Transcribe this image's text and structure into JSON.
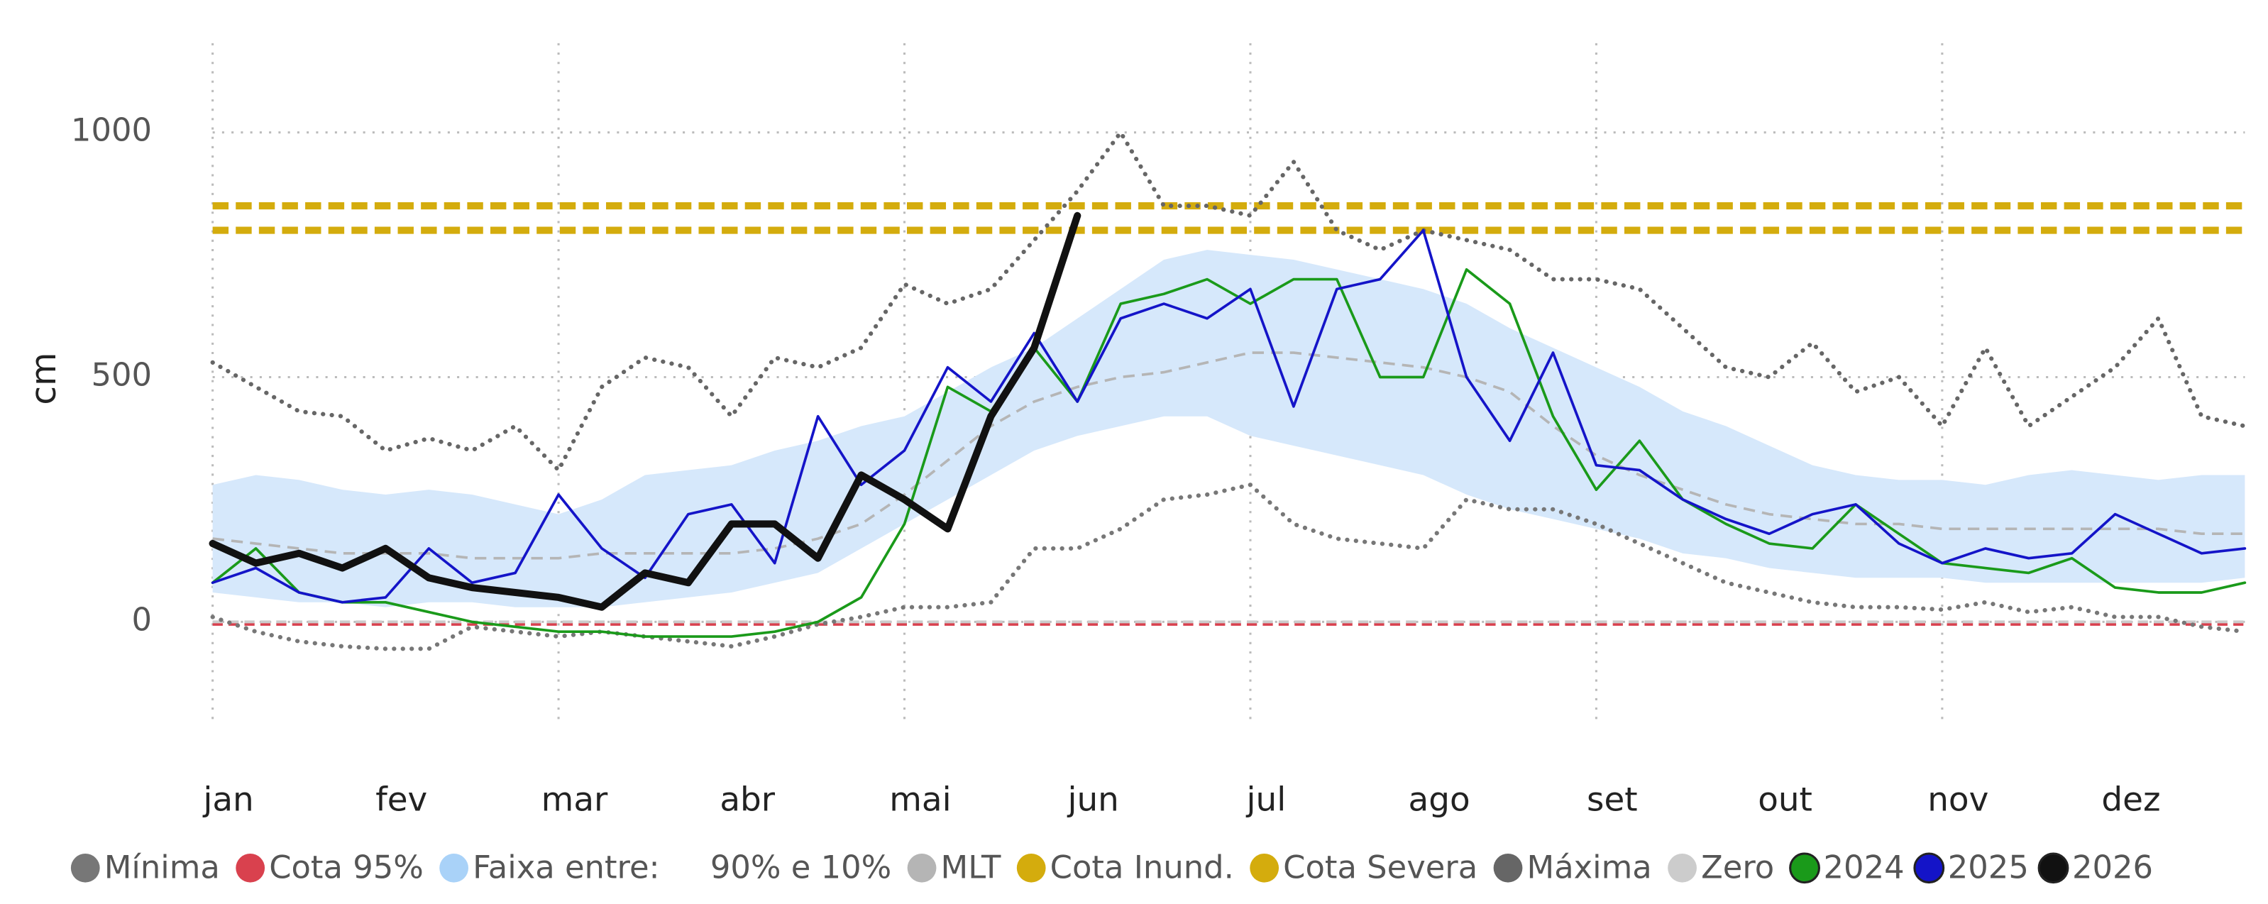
{
  "chart_data": {
    "type": "line",
    "y_label": "cm",
    "ylim": [
      -200,
      1200
    ],
    "yticks": [
      0,
      500,
      1000
    ],
    "grid": true,
    "categories": [
      "jan",
      null,
      null,
      null,
      "fev",
      null,
      null,
      null,
      "mar",
      null,
      null,
      null,
      "abr",
      null,
      null,
      null,
      "mai",
      null,
      null,
      null,
      "jun",
      null,
      null,
      null,
      "jul",
      null,
      null,
      null,
      "ago",
      null,
      null,
      null,
      "set",
      null,
      null,
      null,
      "out",
      null,
      null,
      null,
      "nov",
      null,
      null,
      null,
      "dez",
      null,
      null,
      null
    ],
    "series": [
      {
        "name": "Mínima",
        "color": "#777777",
        "style": "dotted",
        "values": [
          10,
          -20,
          -40,
          -50,
          -55,
          -55,
          -10,
          -20,
          -30,
          -20,
          -30,
          -40,
          -50,
          -30,
          -5,
          10,
          30,
          30,
          40,
          150,
          150,
          190,
          250,
          260,
          280,
          200,
          170,
          160,
          150,
          250,
          230,
          230,
          200,
          160,
          120,
          80,
          60,
          40,
          30,
          30,
          25,
          40,
          20,
          30,
          10,
          10,
          -10,
          -20
        ]
      },
      {
        "name": "Cota 95%",
        "color": "#d9414e",
        "style": "dashed",
        "value": -5
      },
      {
        "name": "Faixa entre:     90% e 10%",
        "color": "#a9d2f8",
        "style": "band",
        "upper": [
          280,
          300,
          290,
          270,
          260,
          270,
          260,
          240,
          220,
          250,
          300,
          310,
          320,
          350,
          370,
          400,
          420,
          470,
          520,
          560,
          620,
          680,
          740,
          760,
          750,
          740,
          720,
          700,
          680,
          650,
          600,
          560,
          520,
          480,
          430,
          400,
          360,
          320,
          300,
          290,
          290,
          280,
          300,
          310,
          300,
          290,
          300,
          300
        ],
        "lower": [
          60,
          50,
          40,
          40,
          30,
          40,
          40,
          30,
          30,
          30,
          40,
          50,
          60,
          80,
          100,
          150,
          200,
          250,
          300,
          350,
          380,
          400,
          420,
          420,
          380,
          360,
          340,
          320,
          300,
          260,
          230,
          210,
          190,
          170,
          140,
          130,
          110,
          100,
          90,
          90,
          90,
          80,
          80,
          80,
          80,
          80,
          80,
          90
        ]
      },
      {
        "name": "MLT",
        "color": "#b5b5b5",
        "style": "dashed",
        "values": [
          170,
          160,
          150,
          140,
          140,
          140,
          130,
          130,
          130,
          140,
          140,
          140,
          140,
          150,
          170,
          200,
          260,
          330,
          400,
          450,
          480,
          500,
          510,
          530,
          550,
          550,
          540,
          530,
          520,
          500,
          470,
          400,
          340,
          300,
          270,
          240,
          220,
          210,
          200,
          200,
          190,
          190,
          190,
          190,
          190,
          190,
          180,
          180
        ]
      },
      {
        "name": "Cota Inund.",
        "color": "#d4ac0d",
        "style": "thick-dashed",
        "value": 850
      },
      {
        "name": "Cota Severa",
        "color": "#d4ac0d",
        "style": "thick-dashed",
        "value": 800
      },
      {
        "name": "Máxima",
        "color": "#666666",
        "style": "dotted",
        "values": [
          530,
          480,
          430,
          420,
          350,
          375,
          350,
          400,
          310,
          480,
          540,
          520,
          420,
          540,
          520,
          560,
          690,
          650,
          680,
          780,
          880,
          1000,
          850,
          850,
          830,
          940,
          800,
          760,
          800,
          780,
          760,
          700,
          700,
          680,
          600,
          520,
          500,
          570,
          470,
          500,
          400,
          560,
          400,
          460,
          520,
          620,
          420,
          400
        ]
      },
      {
        "name": "Zero",
        "color": "#cccccc",
        "style": "dashed",
        "value": 0
      },
      {
        "name": "2024",
        "color": "#1a9a1a",
        "style": "line",
        "values": [
          80,
          150,
          60,
          40,
          40,
          20,
          0,
          -10,
          -20,
          -20,
          -30,
          -30,
          -30,
          -20,
          0,
          50,
          200,
          480,
          430,
          560,
          450,
          650,
          670,
          700,
          650,
          700,
          700,
          500,
          500,
          720,
          650,
          420,
          270,
          370,
          250,
          200,
          160,
          150,
          240,
          180,
          120,
          110,
          100,
          130,
          70,
          60,
          60,
          80
        ]
      },
      {
        "name": "2025",
        "color": "#1414c8",
        "style": "line",
        "values": [
          80,
          110,
          60,
          40,
          50,
          150,
          80,
          100,
          260,
          150,
          90,
          220,
          240,
          120,
          420,
          280,
          350,
          520,
          450,
          590,
          450,
          620,
          650,
          620,
          680,
          440,
          680,
          700,
          800,
          500,
          370,
          550,
          320,
          310,
          250,
          210,
          180,
          220,
          240,
          160,
          120,
          150,
          130,
          140,
          220,
          180,
          140,
          150
        ]
      },
      {
        "name": "2026",
        "color": "#111111",
        "style": "bold",
        "values": [
          160,
          120,
          140,
          110,
          150,
          90,
          70,
          60,
          50,
          30,
          100,
          80,
          200,
          200,
          130,
          300,
          250,
          190,
          420,
          560,
          830,
          null,
          null,
          null,
          null,
          null,
          null,
          null,
          null,
          null,
          null,
          null,
          null,
          null,
          null,
          null,
          null,
          null,
          null,
          null,
          null,
          null,
          null,
          null,
          null,
          null,
          null,
          null
        ]
      }
    ]
  }
}
